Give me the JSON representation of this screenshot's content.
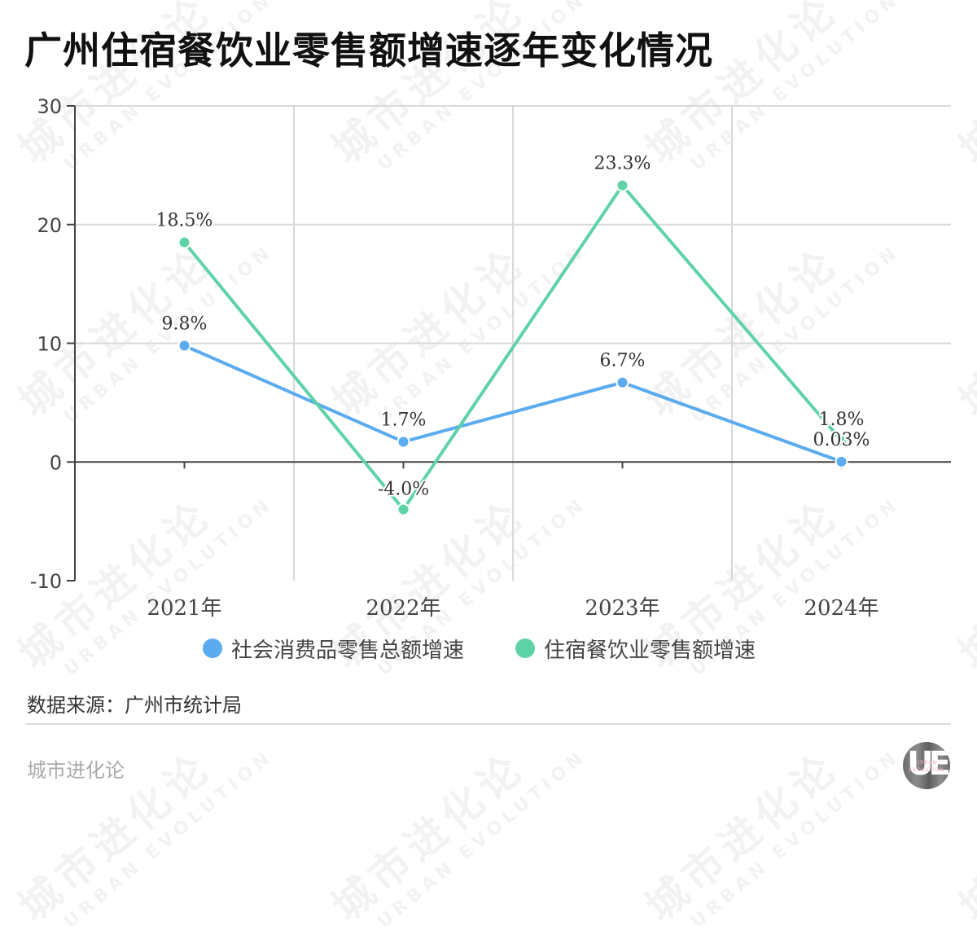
{
  "title": "广州住宿餐饮业零售额增速逐年变化情况",
  "chart_data": {
    "type": "line",
    "title": "广州住宿餐饮业零售额增速逐年变化情况",
    "categories": [
      "2021年",
      "2022年",
      "2023年",
      "2024年"
    ],
    "series": [
      {
        "name": "社会消费品零售总额增速",
        "color": "#5aabef",
        "values": [
          9.8,
          1.7,
          6.7,
          0.03
        ],
        "labels": [
          "9.8%",
          "1.7%",
          "6.7%",
          "0.03%"
        ]
      },
      {
        "name": "住宿餐饮业零售额增速",
        "color": "#5fd3a8",
        "values": [
          18.5,
          -4.0,
          23.3,
          1.8
        ],
        "labels": [
          "18.5%",
          "-4.0%",
          "23.3%",
          "1.8%"
        ]
      }
    ],
    "xlabel": "",
    "ylabel": "",
    "ylim": [
      -10,
      30
    ],
    "yticks": [
      "30",
      "20",
      "10",
      "0",
      "-10"
    ],
    "grid": true,
    "legend_position": "bottom"
  },
  "legend": [
    {
      "label": "社会消费品零售总额增速",
      "color": "#5aabef"
    },
    {
      "label": "住宿餐饮业零售额增速",
      "color": "#5fd3a8"
    }
  ],
  "source": "数据来源：广州市统计局",
  "brand": "城市进化论",
  "logo": {
    "letters": "UE",
    "sub1": "URBAN",
    "sub2": "EVOLUTION"
  },
  "watermark": {
    "cn": "城市进化论",
    "en": "URBAN EVOLUTION"
  }
}
